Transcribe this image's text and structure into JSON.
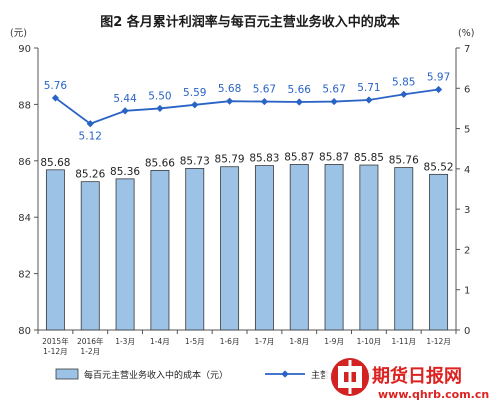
{
  "chart_data": {
    "type": "bar",
    "title": "图2 各月累计利润率与每百元主营业务收入中的成本",
    "left_axis_unit": "(元)",
    "right_axis_unit": "(%)",
    "categories": [
      [
        "2015年",
        "1-12月"
      ],
      [
        "2016年",
        "1-2月"
      ],
      [
        "1-3月"
      ],
      [
        "1-4月"
      ],
      [
        "1-5月"
      ],
      [
        "1-6月"
      ],
      [
        "1-7月"
      ],
      [
        "1-8月"
      ],
      [
        "1-9月"
      ],
      [
        "1-10月"
      ],
      [
        "1-11月"
      ],
      [
        "1-12月"
      ]
    ],
    "series": [
      {
        "name": "每百元主营业务收入中的成本（元）",
        "type": "bar",
        "axis": "left",
        "color": "#9cc3e6",
        "values": [
          85.68,
          85.26,
          85.36,
          85.66,
          85.73,
          85.79,
          85.83,
          85.87,
          85.87,
          85.85,
          85.76,
          85.52
        ],
        "labels": [
          "85.68",
          "85.26",
          "85.36",
          "85.66",
          "85.73",
          "85.79",
          "85.83",
          "85.87",
          "85.87",
          "85.85",
          "85.76",
          "85.52"
        ]
      },
      {
        "name": "主营业务收入利润率（%）",
        "type": "line",
        "axis": "right",
        "color": "#2a63c6",
        "values": [
          5.76,
          5.12,
          5.44,
          5.5,
          5.59,
          5.68,
          5.67,
          5.66,
          5.67,
          5.71,
          5.85,
          5.97
        ],
        "labels": [
          "5.76",
          "5.12",
          "5.44",
          "5.50",
          "5.59",
          "5.68",
          "5.67",
          "5.66",
          "5.67",
          "5.71",
          "5.85",
          "5.97"
        ]
      }
    ],
    "y_left": {
      "range": [
        80,
        90
      ],
      "ticks": [
        "80",
        "82",
        "84",
        "86",
        "88",
        "90"
      ]
    },
    "y_right": {
      "range": [
        0,
        7
      ],
      "ticks": [
        "0",
        "1",
        "2",
        "3",
        "4",
        "5",
        "6",
        "7"
      ]
    },
    "legend": {
      "placement": "bottom",
      "items": [
        "每百元主营业务收入中的成本（元）",
        "主营业务收入利润率（%）"
      ]
    },
    "grid": false
  },
  "watermark": {
    "logo_text": "期货日报网",
    "url": "www.qhrb.com.cn",
    "color": "#d22222"
  }
}
